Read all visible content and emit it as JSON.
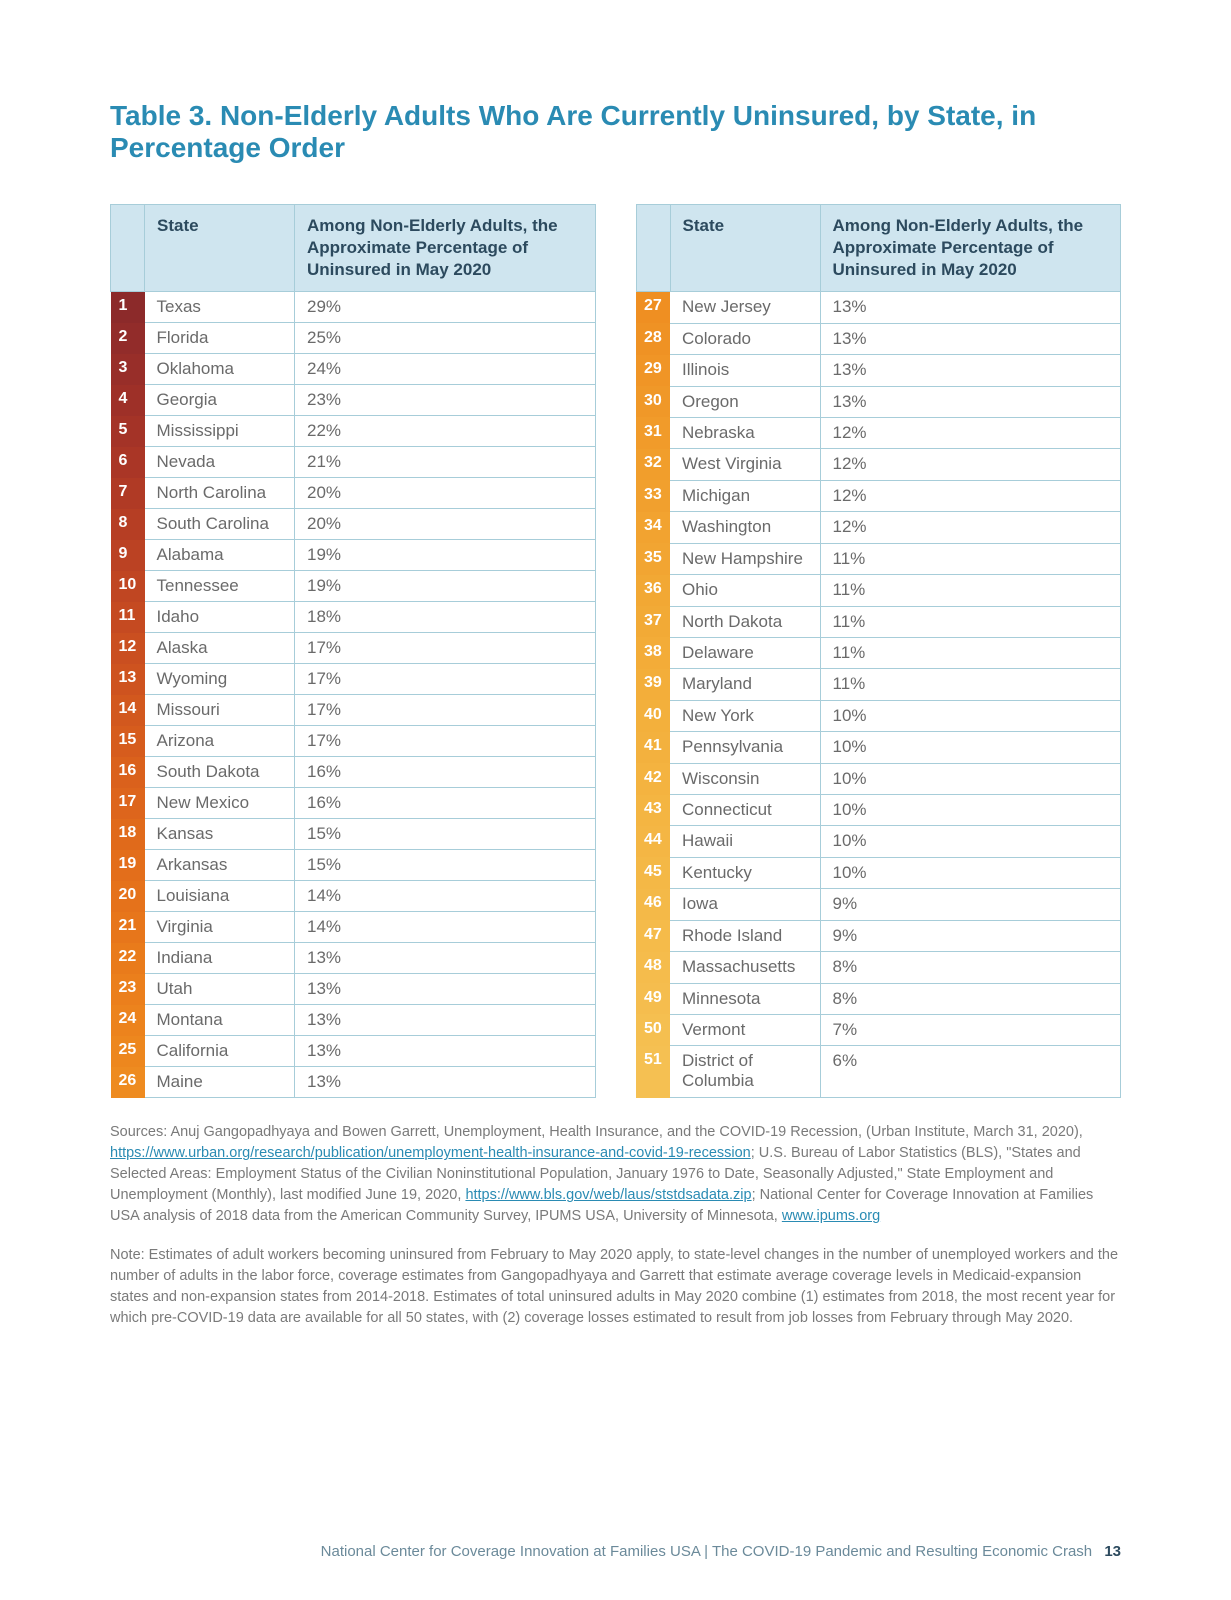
{
  "title": "Table 3. Non-Elderly Adults Who Are Currently Uninsured, by State, in Percentage Order",
  "headers": {
    "state": "State",
    "pct": "Among Non-Elderly Adults, the Approximate Percentage of Uninsured in May 2020"
  },
  "rank_gradient": [
    "#8c2a2a",
    "#922c2a",
    "#982e29",
    "#9e3028",
    "#a43327",
    "#aa3626",
    "#b03a25",
    "#b63e24",
    "#bb4223",
    "#c04622",
    "#c54a21",
    "#ca4f20",
    "#ce531f",
    "#d2581e",
    "#d65c1d",
    "#da611c",
    "#dd651c",
    "#e06a1b",
    "#e36e1b",
    "#e5721b",
    "#e7761b",
    "#e97b1b",
    "#eb7f1c",
    "#ec831d",
    "#ed871e",
    "#ee8b20",
    "#ef8f22",
    "#ef9224",
    "#f09526",
    "#f09828",
    "#f19b2a",
    "#f19e2c",
    "#f1a02e",
    "#f2a330",
    "#f2a532",
    "#f2a834",
    "#f2aa36",
    "#f3ac38",
    "#f3ae3a",
    "#f3b03c",
    "#f3b13e",
    "#f4b340",
    "#f4b542",
    "#f4b644",
    "#f4b846",
    "#f4b948",
    "#f5bb4a",
    "#f5bc4c",
    "#f5bd4e",
    "#f5bf50",
    "#f5c052"
  ],
  "rows_left": [
    {
      "rank": "1",
      "state": "Texas",
      "pct": "29%"
    },
    {
      "rank": "2",
      "state": "Florida",
      "pct": "25%"
    },
    {
      "rank": "3",
      "state": "Oklahoma",
      "pct": "24%"
    },
    {
      "rank": "4",
      "state": "Georgia",
      "pct": "23%"
    },
    {
      "rank": "5",
      "state": "Mississippi",
      "pct": "22%"
    },
    {
      "rank": "6",
      "state": "Nevada",
      "pct": "21%"
    },
    {
      "rank": "7",
      "state": "North Carolina",
      "pct": "20%"
    },
    {
      "rank": "8",
      "state": "South Carolina",
      "pct": "20%"
    },
    {
      "rank": "9",
      "state": "Alabama",
      "pct": "19%"
    },
    {
      "rank": "10",
      "state": "Tennessee",
      "pct": "19%"
    },
    {
      "rank": "11",
      "state": "Idaho",
      "pct": "18%"
    },
    {
      "rank": "12",
      "state": "Alaska",
      "pct": "17%"
    },
    {
      "rank": "13",
      "state": "Wyoming",
      "pct": "17%"
    },
    {
      "rank": "14",
      "state": "Missouri",
      "pct": "17%"
    },
    {
      "rank": "15",
      "state": "Arizona",
      "pct": "17%"
    },
    {
      "rank": "16",
      "state": "South Dakota",
      "pct": "16%"
    },
    {
      "rank": "17",
      "state": "New Mexico",
      "pct": "16%"
    },
    {
      "rank": "18",
      "state": "Kansas",
      "pct": "15%"
    },
    {
      "rank": "19",
      "state": "Arkansas",
      "pct": "15%"
    },
    {
      "rank": "20",
      "state": "Louisiana",
      "pct": "14%"
    },
    {
      "rank": "21",
      "state": "Virginia",
      "pct": "14%"
    },
    {
      "rank": "22",
      "state": "Indiana",
      "pct": "13%"
    },
    {
      "rank": "23",
      "state": "Utah",
      "pct": "13%"
    },
    {
      "rank": "24",
      "state": "Montana",
      "pct": "13%"
    },
    {
      "rank": "25",
      "state": "California",
      "pct": "13%"
    },
    {
      "rank": "26",
      "state": "Maine",
      "pct": "13%"
    }
  ],
  "rows_right": [
    {
      "rank": "27",
      "state": "New Jersey",
      "pct": "13%"
    },
    {
      "rank": "28",
      "state": "Colorado",
      "pct": "13%"
    },
    {
      "rank": "29",
      "state": "Illinois",
      "pct": "13%"
    },
    {
      "rank": "30",
      "state": "Oregon",
      "pct": "13%"
    },
    {
      "rank": "31",
      "state": "Nebraska",
      "pct": "12%"
    },
    {
      "rank": "32",
      "state": "West Virginia",
      "pct": "12%"
    },
    {
      "rank": "33",
      "state": "Michigan",
      "pct": "12%"
    },
    {
      "rank": "34",
      "state": "Washington",
      "pct": "12%"
    },
    {
      "rank": "35",
      "state": "New Hampshire",
      "pct": "11%"
    },
    {
      "rank": "36",
      "state": "Ohio",
      "pct": "11%"
    },
    {
      "rank": "37",
      "state": "North Dakota",
      "pct": "11%"
    },
    {
      "rank": "38",
      "state": "Delaware",
      "pct": "11%"
    },
    {
      "rank": "39",
      "state": "Maryland",
      "pct": "11%"
    },
    {
      "rank": "40",
      "state": "New York",
      "pct": "10%"
    },
    {
      "rank": "41",
      "state": "Pennsylvania",
      "pct": "10%"
    },
    {
      "rank": "42",
      "state": "Wisconsin",
      "pct": "10%"
    },
    {
      "rank": "43",
      "state": "Connecticut",
      "pct": "10%"
    },
    {
      "rank": "44",
      "state": "Hawaii",
      "pct": "10%"
    },
    {
      "rank": "45",
      "state": "Kentucky",
      "pct": "10%"
    },
    {
      "rank": "46",
      "state": "Iowa",
      "pct": "9%"
    },
    {
      "rank": "47",
      "state": "Rhode Island",
      "pct": "9%"
    },
    {
      "rank": "48",
      "state": "Massachusetts",
      "pct": "8%"
    },
    {
      "rank": "49",
      "state": "Minnesota",
      "pct": "8%"
    },
    {
      "rank": "50",
      "state": "Vermont",
      "pct": "7%"
    },
    {
      "rank": "51",
      "state": "District of Columbia",
      "pct": "6%"
    }
  ],
  "sources": {
    "prefix": "Sources: Anuj Gangopadhyaya and Bowen Garrett, Unemployment, Health Insurance, and the COVID-19 Recession, (Urban Institute, March 31, 2020), ",
    "link1": "https://www.urban.org/research/publication/unemployment-health-insurance-and-covid-19-recession",
    "mid1": "; U.S. Bureau of Labor Statistics (BLS), \"States and Selected Areas: Employment Status of the Civilian Noninstitutional Population, January 1976 to Date, Seasonally Adjusted,\" State Employment and Unemployment (Monthly), last modified June 19, 2020,  ",
    "link2": "https://www.bls.gov/web/laus/ststdsadata.zip",
    "mid2": "; National Center for Coverage Innovation at Families USA analysis of 2018 data from the American Community Survey, IPUMS USA, University of Minnesota, ",
    "link3": "www.ipums.org"
  },
  "note": "Note: Estimates of adult workers becoming uninsured from February to May 2020 apply, to state-level changes in the number of unemployed workers and the number of adults in the labor force, coverage estimates from Gangopadhyaya and Garrett that estimate average coverage levels in Medicaid-expansion states and non-expansion states from 2014-2018.  Estimates of total uninsured adults in May 2020 combine (1) estimates from 2018, the most recent year for which pre-COVID-19 data are available for all 50 states, with (2) coverage losses estimated to result from job losses from February through May 2020.",
  "footer": {
    "text": "National Center for Coverage Innovation at Families USA  |  The COVID-19 Pandemic and Resulting Economic Crash",
    "page": "13"
  }
}
